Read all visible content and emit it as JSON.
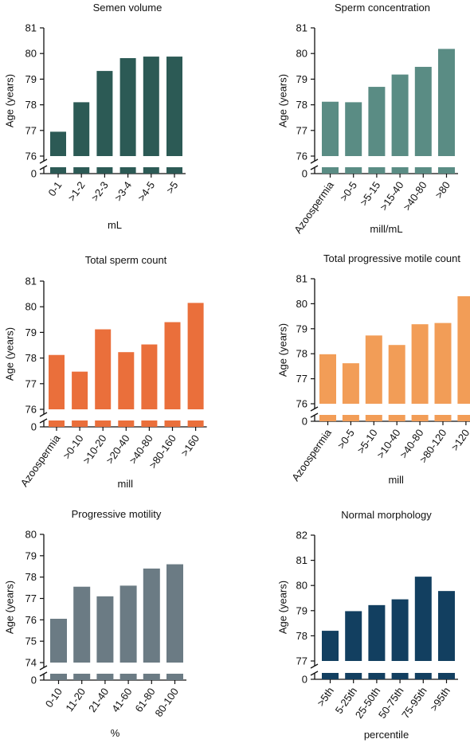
{
  "chart_data": [
    {
      "type": "bar",
      "title": "Semen volume",
      "xlabel": "mL",
      "ylabel": "Age (years)",
      "ylim": [
        76,
        81
      ],
      "yticks": [
        "76",
        "77",
        "78",
        "79",
        "80",
        "81"
      ],
      "axis_break_zero": "0",
      "color": "#2c5a55",
      "categories": [
        "0-1",
        ">1-2",
        ">2-3",
        ">3-4",
        ">4-5",
        ">5"
      ],
      "values": [
        76.95,
        78.1,
        79.32,
        79.82,
        79.88,
        79.88
      ]
    },
    {
      "type": "bar",
      "title": "Sperm concentration",
      "xlabel": "mill/mL",
      "ylabel": "Age (years)",
      "ylim": [
        76,
        81
      ],
      "yticks": [
        "76",
        "77",
        "78",
        "79",
        "80",
        "81"
      ],
      "axis_break_zero": "0",
      "color": "#5a8c84",
      "categories": [
        "Azoospermia",
        ">0-5",
        ">5-15",
        ">15-40",
        ">40-80",
        ">80"
      ],
      "values": [
        78.12,
        78.1,
        78.7,
        79.18,
        79.48,
        80.18
      ]
    },
    {
      "type": "bar",
      "title": "Total sperm count",
      "xlabel": "mill",
      "ylabel": "Age (years)",
      "ylim": [
        76,
        81
      ],
      "yticks": [
        "76",
        "77",
        "78",
        "79",
        "80",
        "81"
      ],
      "axis_break_zero": "0",
      "color": "#ea6f3b",
      "categories": [
        "Azoospermia",
        ">0-10",
        ">10-20",
        ">20-40",
        ">40-80",
        ">80-160",
        ">160"
      ],
      "values": [
        78.12,
        77.47,
        79.12,
        78.23,
        78.53,
        79.4,
        80.15
      ]
    },
    {
      "type": "bar",
      "title": "Total progressive motile count",
      "xlabel": "mill",
      "ylabel": "Age (years)",
      "ylim": [
        76,
        81
      ],
      "yticks": [
        "76",
        "77",
        "78",
        "79",
        "80",
        "81"
      ],
      "axis_break_zero": "0",
      "color": "#f29d57",
      "categories": [
        "Azoospermia",
        ">0-5",
        ">5-10",
        ">10-40",
        ">40-80",
        ">80-120",
        ">120"
      ],
      "values": [
        77.98,
        77.62,
        78.73,
        78.35,
        79.18,
        79.23,
        80.3
      ]
    },
    {
      "type": "bar",
      "title": "Progressive motility",
      "xlabel": "%",
      "ylabel": "Age (years)",
      "ylim": [
        74,
        80
      ],
      "yticks": [
        "74",
        "75",
        "76",
        "77",
        "78",
        "79",
        "80"
      ],
      "axis_break_zero": "0",
      "color": "#6b7b84",
      "categories": [
        "0-10",
        "11-20",
        "21-40",
        "41-60",
        "61-80",
        "80-100"
      ],
      "values": [
        76.05,
        77.55,
        77.1,
        77.6,
        78.4,
        78.6
      ]
    },
    {
      "type": "bar",
      "title": "Normal morphology",
      "xlabel": "percentile",
      "ylabel": "Age (years)",
      "ylim": [
        77,
        82
      ],
      "yticks": [
        "77",
        "78",
        "79",
        "80",
        "81",
        "82"
      ],
      "axis_break_zero": "0",
      "color": "#123f60",
      "categories": [
        ">5th",
        "5-25th",
        "25-50th",
        "50-75th",
        "75-95th",
        ">95th"
      ],
      "values": [
        78.2,
        78.98,
        79.22,
        79.45,
        80.35,
        79.78
      ]
    }
  ]
}
